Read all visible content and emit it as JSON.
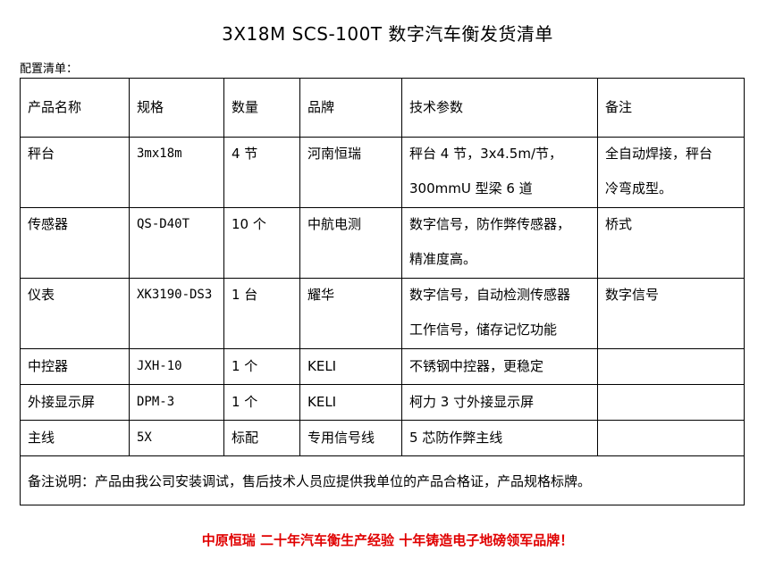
{
  "title": "3X18M SCS-100T 数字汽车衡发货清单",
  "subtitle": "配置清单：",
  "table": {
    "headers": [
      "产品名称",
      "规格",
      "数量",
      "品牌",
      "技术参数",
      "备注"
    ],
    "rows": [
      {
        "name": "秤台",
        "spec": "3mx18m",
        "qty": "4 节",
        "brand": "河南恒瑞",
        "tech": [
          "秤台 4 节，3x4.5m/节，",
          "300mmU 型梁 6 道"
        ],
        "remark": [
          "全自动焊接，秤台",
          "冷弯成型。"
        ]
      },
      {
        "name": "传感器",
        "spec": "QS-D40T",
        "qty": "10 个",
        "brand": "中航电测",
        "tech": [
          "数字信号，防作弊传感器，",
          "精准度高。"
        ],
        "remark": [
          "桥式"
        ]
      },
      {
        "name": "仪表",
        "spec": "XK3190-DS3",
        "qty": "1 台",
        "brand": "耀华",
        "tech": [
          "数字信号，自动检测传感器",
          "工作信号，储存记忆功能"
        ],
        "remark": [
          "数字信号"
        ]
      },
      {
        "name": "中控器",
        "spec": "JXH-10",
        "qty": "1 个",
        "brand": "KELI",
        "tech": [
          "不锈钢中控器，更稳定"
        ],
        "remark": []
      },
      {
        "name": "外接显示屏",
        "spec": "DPM-3",
        "qty": "1 个",
        "brand": "KELI",
        "tech": [
          "柯力 3 寸外接显示屏"
        ],
        "remark": []
      },
      {
        "name": "主线",
        "spec": "5X",
        "qty": "标配",
        "brand": "专用信号线",
        "tech": [
          "5 芯防作弊主线"
        ],
        "remark": []
      }
    ],
    "note": "备注说明：产品由我公司安装调试，售后技术人员应提供我单位的产品合格证，产品规格标牌。"
  },
  "footer": "中原恒瑞  二十年汽车衡生产经验  十年铸造电子地磅领军品牌！",
  "colors": {
    "footer": "#e00000"
  }
}
